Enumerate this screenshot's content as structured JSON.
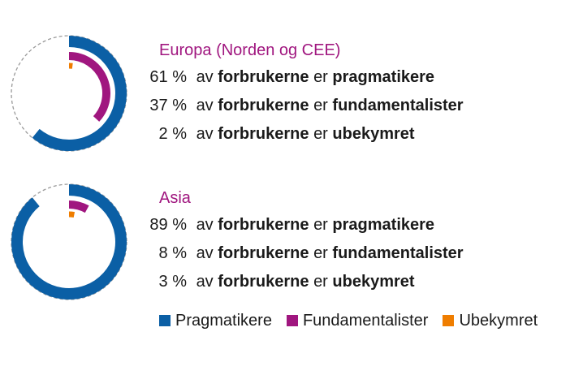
{
  "colors": {
    "pragmatic": "#0b5fa5",
    "fundamental": "#a0167f",
    "unconcerned": "#ef7d00",
    "region_title": "#a0167f",
    "dashed_track": "#9a9a9a"
  },
  "chart_data": [
    {
      "type": "pie",
      "style": "concentric-rings",
      "region": "Europa",
      "region_suffix": "(Norden og CEE)",
      "series": [
        {
          "name": "Pragmatikere",
          "percent": 61
        },
        {
          "name": "Fundamentalister",
          "percent": 37
        },
        {
          "name": "Ubekymret",
          "percent": 2
        }
      ],
      "rows": [
        {
          "pct": "61 %",
          "pre": "av",
          "noun": "forbrukerne",
          "verb": "er",
          "category": "pragmatikere"
        },
        {
          "pct": "37 %",
          "pre": "av",
          "noun": "forbrukerne",
          "verb": "er",
          "category": "fundamentalister"
        },
        {
          "pct": "2 %",
          "pre": "av",
          "noun": "forbrukerne",
          "verb": "er",
          "category": "ubekymret"
        }
      ]
    },
    {
      "type": "pie",
      "style": "concentric-rings",
      "region": "Asia",
      "region_suffix": "",
      "series": [
        {
          "name": "Pragmatikere",
          "percent": 89
        },
        {
          "name": "Fundamentalister",
          "percent": 8
        },
        {
          "name": "Ubekymret",
          "percent": 3
        }
      ],
      "rows": [
        {
          "pct": "89 %",
          "pre": "av",
          "noun": "forbrukerne",
          "verb": "er",
          "category": "pragmatikere"
        },
        {
          "pct": "8 %",
          "pre": "av",
          "noun": "forbrukerne",
          "verb": "er",
          "category": "fundamentalister"
        },
        {
          "pct": "3 %",
          "pre": "av",
          "noun": "forbrukerne",
          "verb": "er",
          "category": "ubekymret"
        }
      ]
    }
  ],
  "legend": [
    {
      "label": "Pragmatikere",
      "color": "#0b5fa5"
    },
    {
      "label": "Fundamentalister",
      "color": "#a0167f"
    },
    {
      "label": "Ubekymret",
      "color": "#ef7d00"
    }
  ]
}
